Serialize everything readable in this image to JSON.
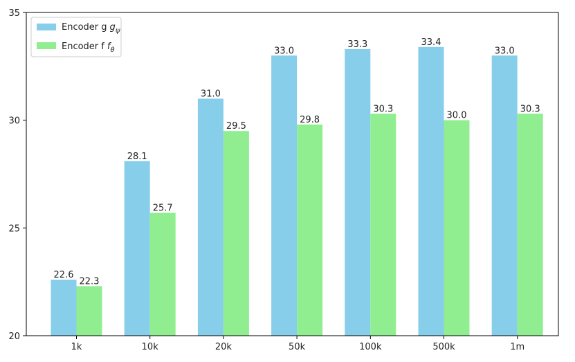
{
  "chart_data": {
    "type": "bar",
    "categories": [
      "1k",
      "10k",
      "20k",
      "50k",
      "100k",
      "500k",
      "1m"
    ],
    "series": [
      {
        "name": "Encoder g",
        "subscript": "ψ",
        "color": "#87CEEB",
        "values": [
          22.6,
          28.1,
          31.0,
          33.0,
          33.3,
          33.4,
          33.0
        ]
      },
      {
        "name": "Encoder f",
        "subscript": "θ",
        "color": "#90EE90",
        "values": [
          22.3,
          25.7,
          29.5,
          29.8,
          30.3,
          30.0,
          30.3
        ]
      }
    ],
    "title": "",
    "xlabel": "",
    "ylabel": "",
    "ylim": [
      20,
      35
    ],
    "yticks": [
      20,
      25,
      30,
      35
    ],
    "grid": false,
    "legend": "top-left"
  }
}
